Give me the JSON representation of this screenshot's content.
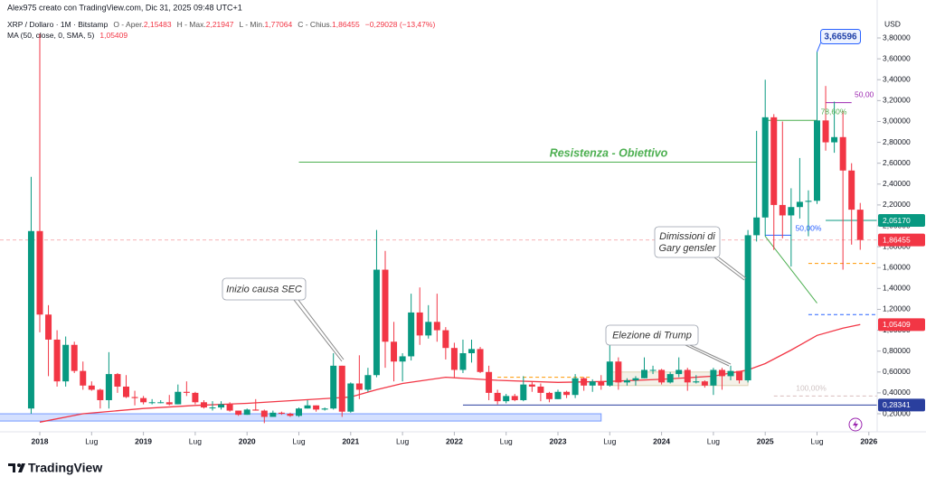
{
  "header": {
    "author": "Alex975 creato con TradingView.com, Dic 31, 2025 09:48 UTC+1",
    "symbol": "XRP / Dollaro · 1M · Bitstamp",
    "ohlc": [
      {
        "label": "O - Aper.",
        "value": "2,15483"
      },
      {
        "label": "H - Max.",
        "value": "2,21947"
      },
      {
        "label": "L - Min.",
        "value": "1,77064"
      },
      {
        "label": "C - Chius.",
        "value": "1,86455"
      }
    ],
    "change": "−0,29028 (−13,47%)",
    "ma_label": "MA (50, close, 0, SMA, 5)",
    "ma_value": "1,05409"
  },
  "brand": "TradingView",
  "chart_data": {
    "type": "candlestick",
    "currency": "USD",
    "up_color": "#089981",
    "down_color": "#f23645",
    "grid": false,
    "x": [
      "2017-12",
      "2018-01",
      "2018-02",
      "2018-03",
      "2018-04",
      "2018-05",
      "2018-06",
      "2018-07",
      "2018-08",
      "2018-09",
      "2018-10",
      "2018-11",
      "2018-12",
      "2019-01",
      "2019-02",
      "2019-03",
      "2019-04",
      "2019-05",
      "2019-06",
      "2019-07",
      "2019-08",
      "2019-09",
      "2019-10",
      "2019-11",
      "2019-12",
      "2020-01",
      "2020-02",
      "2020-03",
      "2020-04",
      "2020-05",
      "2020-06",
      "2020-07",
      "2020-08",
      "2020-09",
      "2020-10",
      "2020-11",
      "2020-12",
      "2021-01",
      "2021-02",
      "2021-03",
      "2021-04",
      "2021-05",
      "2021-06",
      "2021-07",
      "2021-08",
      "2021-09",
      "2021-10",
      "2021-11",
      "2021-12",
      "2022-01",
      "2022-02",
      "2022-03",
      "2022-04",
      "2022-05",
      "2022-06",
      "2022-07",
      "2022-08",
      "2022-09",
      "2022-10",
      "2022-11",
      "2022-12",
      "2023-01",
      "2023-02",
      "2023-03",
      "2023-04",
      "2023-05",
      "2023-06",
      "2023-07",
      "2023-08",
      "2023-09",
      "2023-10",
      "2023-11",
      "2023-12",
      "2024-01",
      "2024-02",
      "2024-03",
      "2024-04",
      "2024-05",
      "2024-06",
      "2024-07",
      "2024-08",
      "2024-09",
      "2024-10",
      "2024-11",
      "2024-12",
      "2025-01",
      "2025-02",
      "2025-03",
      "2025-04",
      "2025-05",
      "2025-06",
      "2025-07",
      "2025-08",
      "2025-09",
      "2025-10",
      "2025-11",
      "2025-12"
    ],
    "open": [
      0.25,
      1.95,
      1.15,
      0.91,
      0.51,
      0.86,
      0.61,
      0.47,
      0.43,
      0.33,
      0.58,
      0.46,
      0.36,
      0.35,
      0.31,
      0.31,
      0.31,
      0.29,
      0.41,
      0.4,
      0.31,
      0.26,
      0.26,
      0.29,
      0.23,
      0.19,
      0.24,
      0.23,
      0.17,
      0.21,
      0.2,
      0.18,
      0.25,
      0.28,
      0.24,
      0.25,
      0.66,
      0.22,
      0.49,
      0.43,
      0.57,
      1.58,
      0.89,
      0.7,
      0.75,
      1.17,
      0.95,
      1.08,
      1.0,
      0.83,
      0.62,
      0.78,
      0.82,
      0.6,
      0.4,
      0.32,
      0.37,
      0.33,
      0.48,
      0.46,
      0.4,
      0.34,
      0.41,
      0.38,
      0.54,
      0.47,
      0.51,
      0.47,
      0.7,
      0.5,
      0.52,
      0.54,
      0.62,
      0.62,
      0.5,
      0.58,
      0.62,
      0.5,
      0.51,
      0.47,
      0.62,
      0.56,
      0.61,
      0.52,
      1.91,
      2.08,
      3.04,
      2.2,
      2.1,
      2.18,
      2.23,
      2.24,
      3.01,
      2.8,
      2.85,
      2.53,
      2.15483
    ],
    "high": [
      2.47,
      3.84,
      1.24,
      1.0,
      0.94,
      0.89,
      0.7,
      0.51,
      0.44,
      0.79,
      0.59,
      0.57,
      0.42,
      0.37,
      0.34,
      0.33,
      0.38,
      0.48,
      0.51,
      0.41,
      0.33,
      0.32,
      0.32,
      0.31,
      0.23,
      0.25,
      0.34,
      0.24,
      0.23,
      0.22,
      0.21,
      0.26,
      0.33,
      0.28,
      0.26,
      0.78,
      0.66,
      0.5,
      0.76,
      0.64,
      1.96,
      1.76,
      1.08,
      0.78,
      1.35,
      1.41,
      1.24,
      1.35,
      1.03,
      0.88,
      0.91,
      0.91,
      0.84,
      0.66,
      0.43,
      0.39,
      0.39,
      0.56,
      0.51,
      0.49,
      0.41,
      0.43,
      0.42,
      0.58,
      0.55,
      0.53,
      0.57,
      0.94,
      0.74,
      0.54,
      0.56,
      0.74,
      0.66,
      0.63,
      0.6,
      0.74,
      0.64,
      0.57,
      0.52,
      0.64,
      0.64,
      0.66,
      0.61,
      1.96,
      2.91,
      3.4,
      3.07,
      3.0,
      2.36,
      2.65,
      2.34,
      3.66596,
      3.34,
      3.19,
      3.1,
      2.6,
      2.21947
    ],
    "low": [
      0.2,
      0.98,
      0.56,
      0.46,
      0.46,
      0.59,
      0.43,
      0.42,
      0.25,
      0.25,
      0.4,
      0.35,
      0.28,
      0.29,
      0.29,
      0.3,
      0.28,
      0.29,
      0.37,
      0.29,
      0.25,
      0.23,
      0.24,
      0.22,
      0.18,
      0.19,
      0.23,
      0.11,
      0.17,
      0.19,
      0.17,
      0.17,
      0.25,
      0.22,
      0.23,
      0.24,
      0.17,
      0.21,
      0.34,
      0.41,
      0.55,
      0.64,
      0.51,
      0.51,
      0.71,
      0.86,
      0.92,
      0.89,
      0.72,
      0.55,
      0.59,
      0.69,
      0.59,
      0.33,
      0.29,
      0.3,
      0.32,
      0.32,
      0.41,
      0.32,
      0.31,
      0.34,
      0.35,
      0.35,
      0.42,
      0.41,
      0.43,
      0.46,
      0.43,
      0.47,
      0.47,
      0.54,
      0.58,
      0.48,
      0.49,
      0.55,
      0.42,
      0.49,
      0.45,
      0.38,
      0.43,
      0.52,
      0.49,
      0.5,
      1.85,
      1.9,
      1.77,
      1.88,
      1.61,
      2.07,
      1.9,
      2.21,
      2.72,
      2.7,
      1.58,
      1.82,
      1.77064
    ],
    "close": [
      1.95,
      1.15,
      0.91,
      0.51,
      0.86,
      0.61,
      0.47,
      0.43,
      0.33,
      0.58,
      0.46,
      0.36,
      0.35,
      0.31,
      0.31,
      0.31,
      0.29,
      0.41,
      0.4,
      0.31,
      0.26,
      0.26,
      0.29,
      0.23,
      0.19,
      0.24,
      0.23,
      0.17,
      0.21,
      0.2,
      0.18,
      0.25,
      0.28,
      0.24,
      0.25,
      0.66,
      0.22,
      0.49,
      0.43,
      0.57,
      1.58,
      0.89,
      0.7,
      0.75,
      1.17,
      0.95,
      1.08,
      1.0,
      0.83,
      0.62,
      0.78,
      0.82,
      0.6,
      0.4,
      0.32,
      0.37,
      0.33,
      0.48,
      0.46,
      0.4,
      0.34,
      0.41,
      0.38,
      0.54,
      0.47,
      0.51,
      0.47,
      0.7,
      0.5,
      0.52,
      0.54,
      0.62,
      0.62,
      0.5,
      0.58,
      0.62,
      0.5,
      0.51,
      0.47,
      0.62,
      0.56,
      0.61,
      0.52,
      1.91,
      2.08,
      3.04,
      2.2,
      2.1,
      2.18,
      2.23,
      2.24,
      3.01,
      2.8,
      2.85,
      2.53,
      2.15483,
      1.86455
    ],
    "ma": {
      "color": "#f23645",
      "x": [
        "2018-01",
        "2018-06",
        "2019-01",
        "2019-07",
        "2020-01",
        "2020-07",
        "2021-01",
        "2021-04",
        "2021-07",
        "2021-12",
        "2022-06",
        "2023-01",
        "2023-07",
        "2024-01",
        "2024-07",
        "2024-11",
        "2025-01",
        "2025-04",
        "2025-07",
        "2025-10",
        "2025-12"
      ],
      "values": [
        0.12,
        0.2,
        0.25,
        0.28,
        0.3,
        0.33,
        0.36,
        0.43,
        0.49,
        0.55,
        0.52,
        0.5,
        0.51,
        0.53,
        0.56,
        0.62,
        0.68,
        0.81,
        0.95,
        1.02,
        1.05409
      ]
    },
    "ylim": [
      0.027,
      4.077
    ],
    "yticks": [
      {
        "value": 0.2,
        "label": "0,20000"
      },
      {
        "value": 0.4,
        "label": "0,40000"
      },
      {
        "value": 0.6,
        "label": "0,60000"
      },
      {
        "value": 0.8,
        "label": "0,80000"
      },
      {
        "value": 1.0,
        "label": "1,00000"
      },
      {
        "value": 1.2,
        "label": "1,20000"
      },
      {
        "value": 1.4,
        "label": "1,40000"
      },
      {
        "value": 1.6,
        "label": "1,60000"
      },
      {
        "value": 1.8,
        "label": "1,80000"
      },
      {
        "value": 2.0,
        "label": "2,00000"
      },
      {
        "value": 2.2,
        "label": "2,20000"
      },
      {
        "value": 2.4,
        "label": "2,40000"
      },
      {
        "value": 2.6,
        "label": "2,60000"
      },
      {
        "value": 2.8,
        "label": "2,80000"
      },
      {
        "value": 3.0,
        "label": "3,00000"
      },
      {
        "value": 3.2,
        "label": "3,20000"
      },
      {
        "value": 3.4,
        "label": "3,40000"
      },
      {
        "value": 3.6,
        "label": "3,60000"
      },
      {
        "value": 3.8,
        "label": "3,80000"
      }
    ],
    "xticks": [
      {
        "value": "2018-01",
        "label": "2018"
      },
      {
        "value": "2018-07",
        "label": "Lug"
      },
      {
        "value": "2019-01",
        "label": "2019"
      },
      {
        "value": "2019-07",
        "label": "Lug"
      },
      {
        "value": "2020-01",
        "label": "2020"
      },
      {
        "value": "2020-07",
        "label": "Lug"
      },
      {
        "value": "2021-01",
        "label": "2021"
      },
      {
        "value": "2021-07",
        "label": "Lug"
      },
      {
        "value": "2022-01",
        "label": "2022"
      },
      {
        "value": "2022-07",
        "label": "Lug"
      },
      {
        "value": "2023-01",
        "label": "2023"
      },
      {
        "value": "2023-07",
        "label": "Lug"
      },
      {
        "value": "2024-01",
        "label": "2024"
      },
      {
        "value": "2024-07",
        "label": "Lug"
      },
      {
        "value": "2025-01",
        "label": "2025"
      },
      {
        "value": "2025-07",
        "label": "Lug"
      },
      {
        "value": "2026-01",
        "label": "2026"
      }
    ],
    "levels": [
      {
        "value": 2.61,
        "from": "2020-07",
        "to": "2024-12",
        "color": "#4caf50",
        "dash": false
      },
      {
        "value": 0.28341,
        "from": "2022-02",
        "to": "2026-02",
        "color": "#2a3f9e",
        "dash": false
      },
      {
        "value": 3.01,
        "from": "2025-01",
        "to": "2025-07",
        "color": "#4caf50",
        "dash": false
      },
      {
        "value": 3.18,
        "from": "2025-08",
        "to": "2025-11",
        "color": "#9c27b0",
        "dash": false
      },
      {
        "value": 1.91,
        "from": "2025-01",
        "to": "2025-04",
        "color": "#2962ff",
        "dash": false
      },
      {
        "value": 2.0517,
        "from": "2025-08",
        "to": "2026-02",
        "color": "#089981",
        "dash": false
      },
      {
        "value": 1.64,
        "from": "2025-06",
        "to": "2026-02",
        "color": "#ff9800",
        "dash": true
      },
      {
        "value": 1.15,
        "from": "2025-06",
        "to": "2026-02",
        "color": "#2962ff",
        "dash": true
      },
      {
        "value": 0.55,
        "from": "2022-06",
        "to": "2023-05",
        "color": "#ff9800",
        "dash": true
      },
      {
        "value": 0.37,
        "from": "2025-02",
        "to": "2026-02",
        "color": "#d9bcbc",
        "dash": true
      },
      {
        "value": 1.86455,
        "from": "2017-08",
        "to": "2026-02",
        "color": "#f7b3b8",
        "dash": true
      }
    ],
    "zones": [
      {
        "from": "2017-08",
        "to": "2023-06",
        "low": 0.13,
        "high": 0.2,
        "color": "#2962ff"
      },
      {
        "from": "2023-07",
        "to": "2024-11",
        "low": 0.47,
        "high": 0.6,
        "color": "#c9b98a"
      }
    ],
    "trendlines": [
      {
        "from": [
          "2025-01",
          1.9
        ],
        "to": [
          "2025-07",
          1.26
        ],
        "color": "#4caf50"
      }
    ],
    "price_labels": [
      {
        "value": 2.0517,
        "label": "2,05170",
        "color": "#089981"
      },
      {
        "value": 1.86455,
        "label": "1,86455",
        "color": "#f23645"
      },
      {
        "value": 1.05409,
        "label": "1,05409",
        "color": "#f23645"
      },
      {
        "value": 0.28341,
        "label": "0,28341",
        "color": "#2a3f9e"
      }
    ],
    "high_label": {
      "x": "2025-07",
      "value": 3.66596,
      "label": "3,66596"
    },
    "annotations": {
      "resistance": "Resistenza - Obiettivo",
      "sec": "Inizio causa SEC",
      "trump": "Elezione di Trump",
      "gensler": [
        "Dimissioni di",
        "Gary gensler"
      ],
      "fib786": "78,60%",
      "fib50": "50,00%",
      "fib50b": "50,00",
      "fib100": "100,00%"
    }
  }
}
